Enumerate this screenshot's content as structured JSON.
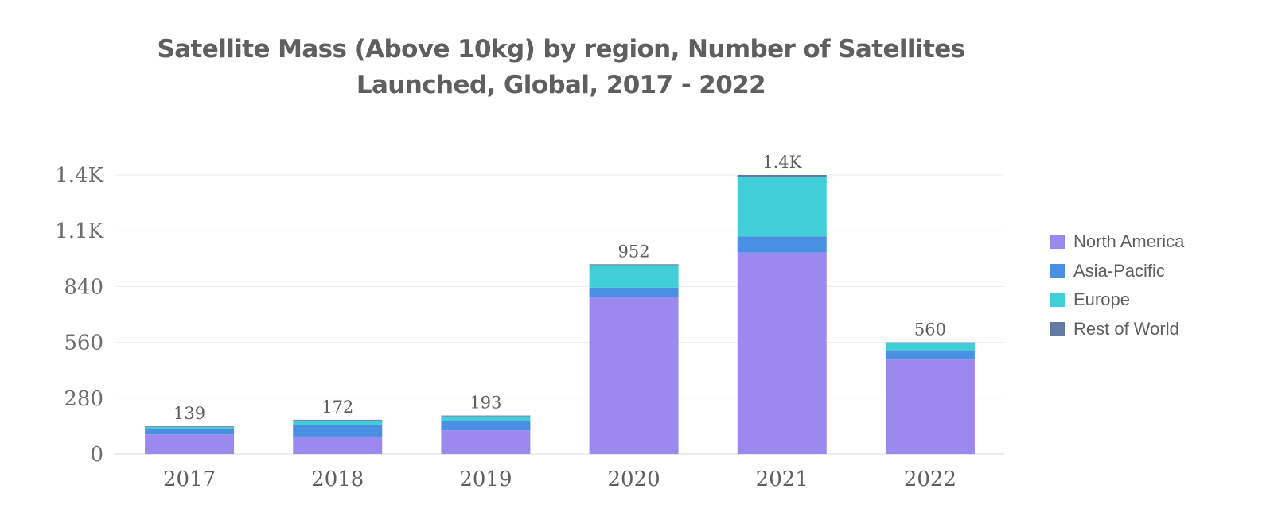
{
  "chart_data": {
    "type": "bar",
    "stacked": true,
    "title_lines": [
      "Satellite Mass (Above 10kg) by region, Number of Satellites",
      "Launched, Global, 2017 - 2022"
    ],
    "categories": [
      "2017",
      "2018",
      "2019",
      "2020",
      "2021",
      "2022"
    ],
    "series": [
      {
        "name": "North America",
        "color": "#9b89f0",
        "values": [
          99,
          84,
          119,
          788,
          1010,
          474
        ]
      },
      {
        "name": "Asia-Pacific",
        "color": "#4a90e2",
        "values": [
          28,
          61,
          50,
          46,
          82,
          46
        ]
      },
      {
        "name": "Europe",
        "color": "#40cfd9",
        "values": [
          8,
          23,
          20,
          113,
          300,
          38
        ]
      },
      {
        "name": "Rest of World",
        "color": "#657aa3",
        "values": [
          4,
          4,
          4,
          5,
          8,
          2
        ]
      }
    ],
    "totals": [
      139,
      172,
      193,
      952,
      1400,
      560
    ],
    "total_labels": [
      "139",
      "172",
      "193",
      "952",
      "1.4K",
      "560"
    ],
    "y_ticks": [
      0,
      280,
      560,
      840,
      1120,
      1400
    ],
    "y_tick_labels": [
      "0",
      "280",
      "560",
      "840",
      "1.1K",
      "1.4K"
    ],
    "ylim": [
      0,
      1400
    ],
    "xlabel": "",
    "ylabel": "",
    "grid": true,
    "legend_position": "right"
  }
}
